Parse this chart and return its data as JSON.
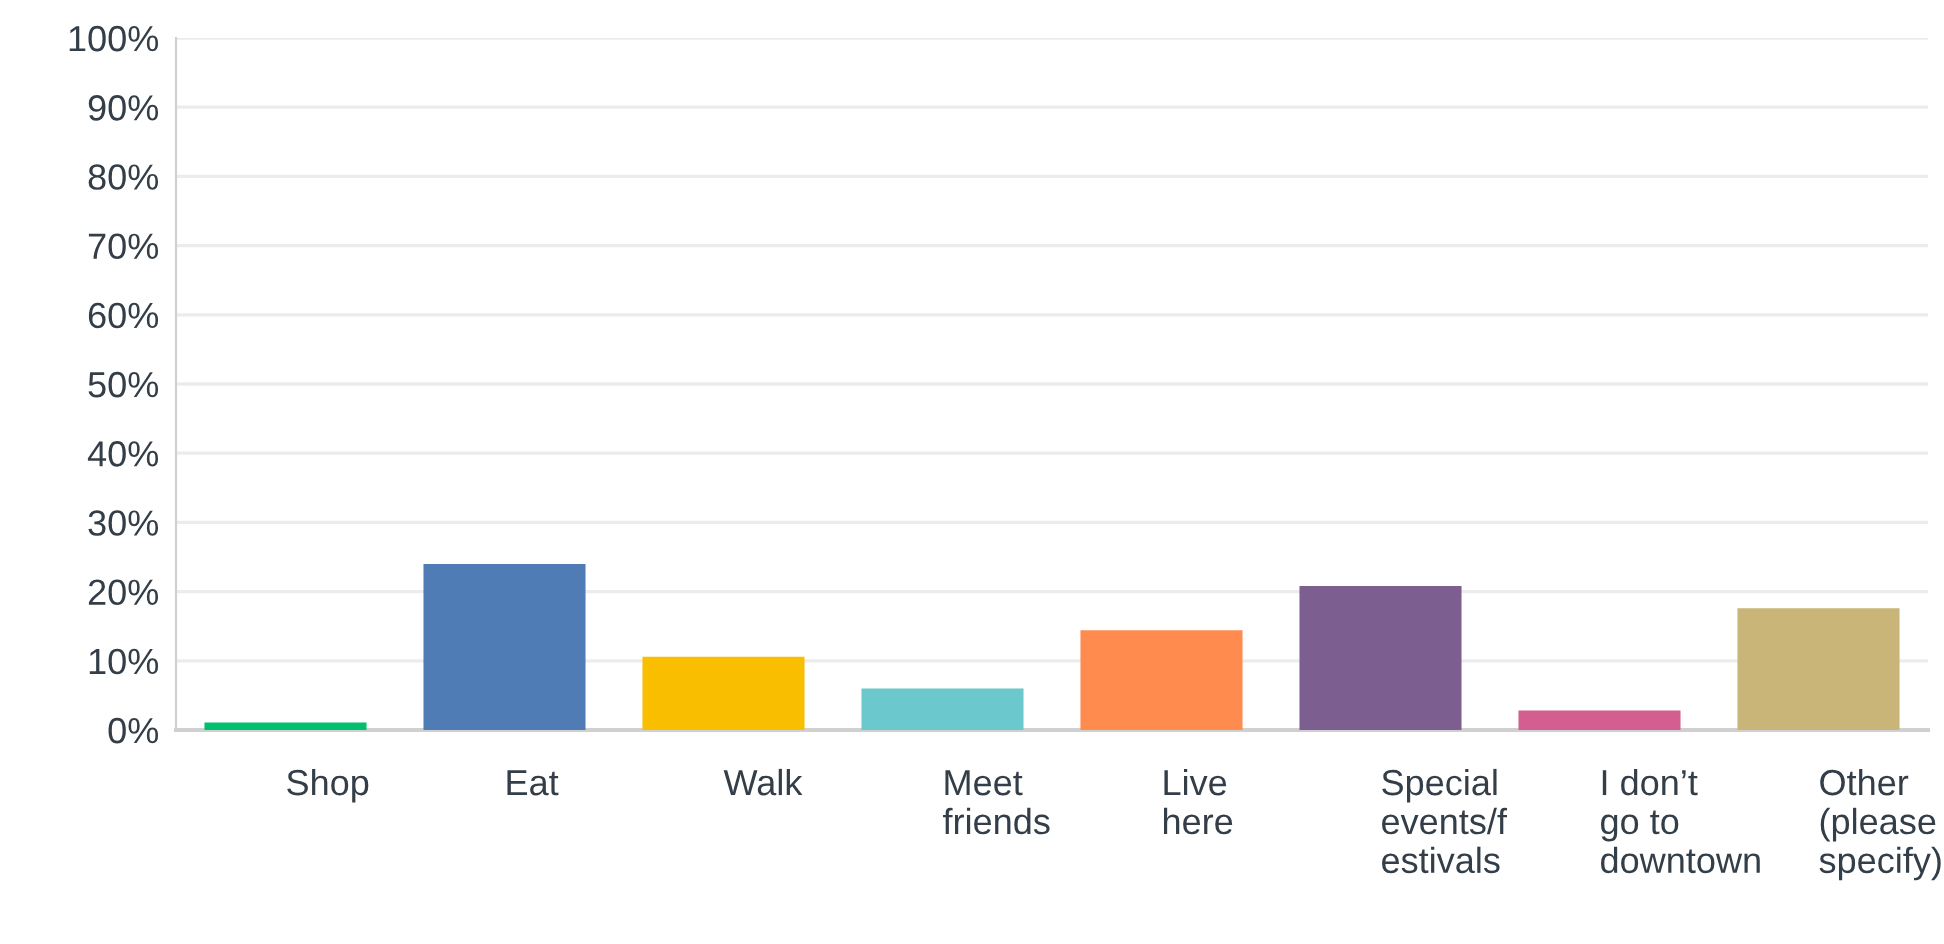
{
  "chart_data": {
    "type": "bar",
    "categories": [
      "Shop",
      "Eat",
      "Walk",
      "Meet\nfriends",
      "Live\nhere",
      "Special\nevents/f\nestivals",
      "I don’t\ngo to\ndowntown",
      "Other\n(please\nspecify)"
    ],
    "values": [
      1.1,
      24.0,
      10.6,
      6.0,
      14.4,
      20.8,
      2.8,
      17.6
    ],
    "colors": [
      "#00bf6f",
      "#507cb6",
      "#f9be00",
      "#6bc8cd",
      "#ff8b4f",
      "#7d5e90",
      "#d25f90",
      "#c9b577"
    ],
    "ylim": [
      0,
      100
    ],
    "yticks": [
      {
        "value": 0,
        "label": "0%"
      },
      {
        "value": 10,
        "label": "10%"
      },
      {
        "value": 20,
        "label": "20%"
      },
      {
        "value": 30,
        "label": "30%"
      },
      {
        "value": 40,
        "label": "40%"
      },
      {
        "value": 50,
        "label": "50%"
      },
      {
        "value": 60,
        "label": "60%"
      },
      {
        "value": 70,
        "label": "70%"
      },
      {
        "value": 80,
        "label": "80%"
      },
      {
        "value": 90,
        "label": "90%"
      },
      {
        "value": 100,
        "label": "100%"
      }
    ],
    "grid": "y"
  }
}
